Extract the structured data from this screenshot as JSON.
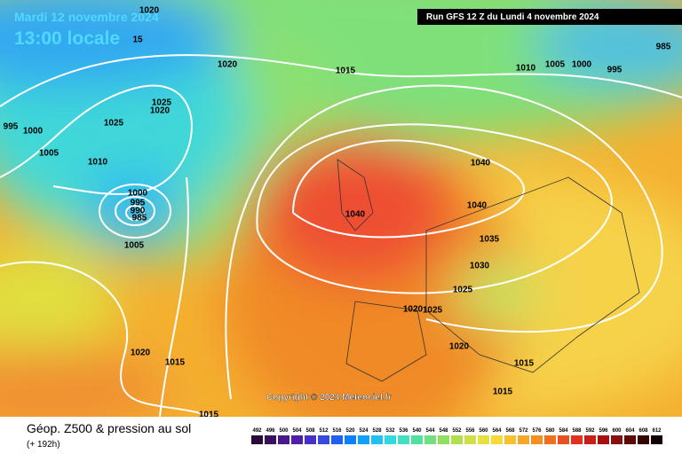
{
  "header": {
    "date": "Mardi 12 novembre 2024",
    "time": "13:00 locale",
    "run": "Run GFS 12 Z du Lundi 4 novembre 2024"
  },
  "map": {
    "copyright": "Copyright © 2024 Meteociel.fr",
    "isobar_labels": [
      "1020",
      "15",
      "1020",
      "1015",
      "1010",
      "1005",
      "1000",
      "995",
      "985",
      "995",
      "1000",
      "1025",
      "1025",
      "1020",
      "1005",
      "1010",
      "1000",
      "995",
      "990",
      "985",
      "1005",
      "1040",
      "1040",
      "1040",
      "1035",
      "1030",
      "1025",
      "1025",
      "1020",
      "1020",
      "1015",
      "1020",
      "1015",
      "1015",
      "1015"
    ]
  },
  "footer": {
    "title": "Géop. Z500 & pression au sol",
    "lead": "(+ 192h)"
  },
  "legend": {
    "levels": [
      492,
      496,
      500,
      504,
      508,
      512,
      516,
      520,
      524,
      528,
      532,
      536,
      540,
      544,
      548,
      552,
      556,
      560,
      564,
      568,
      572,
      576,
      580,
      584,
      588,
      592,
      596,
      600,
      604,
      608,
      612
    ]
  }
}
